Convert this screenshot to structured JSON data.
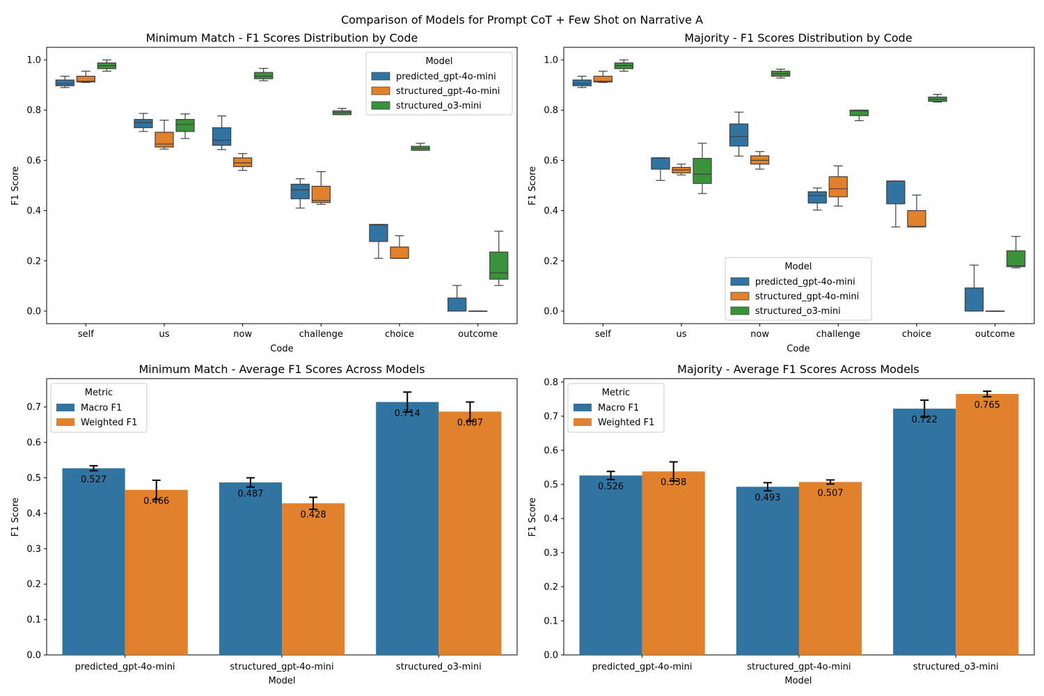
{
  "figure": {
    "suptitle": "Comparison of Models for Prompt CoT + Few Shot on Narrative A"
  },
  "colors": {
    "blue": "#3274a1",
    "orange": "#e1812c",
    "green": "#3a923a",
    "box_line": "#3f3f3f"
  },
  "chart_data": [
    {
      "type": "box",
      "panel": "top-left",
      "title": "Minimum Match - F1 Scores Distribution by Code",
      "xlabel": "Code",
      "ylabel": "F1 Score",
      "ylim": [
        -0.05,
        1.05
      ],
      "yticks": [
        "0.0",
        "0.2",
        "0.4",
        "0.6",
        "0.8",
        "1.0"
      ],
      "categories": [
        "self",
        "us",
        "now",
        "challenge",
        "choice",
        "outcome"
      ],
      "legend": {
        "title": "Model",
        "placement": "upper right",
        "entries": [
          "predicted_gpt-4o-mini",
          "structured_gpt-4o-mini",
          "structured_o3-mini"
        ]
      },
      "series": [
        {
          "name": "predicted_gpt-4o-mini",
          "boxes": [
            {
              "min": 0.89,
              "q1": 0.897,
              "median": 0.905,
              "q3": 0.92,
              "max": 0.935
            },
            {
              "min": 0.715,
              "q1": 0.73,
              "median": 0.75,
              "q3": 0.763,
              "max": 0.787
            },
            {
              "min": 0.643,
              "q1": 0.66,
              "median": 0.68,
              "q3": 0.73,
              "max": 0.777
            },
            {
              "min": 0.41,
              "q1": 0.447,
              "median": 0.483,
              "q3": 0.505,
              "max": 0.527
            },
            {
              "min": 0.21,
              "q1": 0.277,
              "median": 0.343,
              "q3": 0.345,
              "max": 0.345
            },
            {
              "min": 0.0,
              "q1": 0.0,
              "median": 0.0,
              "q3": 0.052,
              "max": 0.102
            }
          ]
        },
        {
          "name": "structured_gpt-4o-mini",
          "boxes": [
            {
              "min": 0.91,
              "q1": 0.912,
              "median": 0.915,
              "q3": 0.935,
              "max": 0.955
            },
            {
              "min": 0.645,
              "q1": 0.653,
              "median": 0.665,
              "q3": 0.712,
              "max": 0.76
            },
            {
              "min": 0.56,
              "q1": 0.575,
              "median": 0.59,
              "q3": 0.61,
              "max": 0.627
            },
            {
              "min": 0.425,
              "q1": 0.432,
              "median": 0.44,
              "q3": 0.497,
              "max": 0.555
            },
            {
              "min": 0.21,
              "q1": 0.21,
              "median": 0.21,
              "q3": 0.255,
              "max": 0.3
            },
            {
              "min": 0.0,
              "q1": 0.0,
              "median": 0.0,
              "q3": 0.0,
              "max": 0.0
            }
          ]
        },
        {
          "name": "structured_o3-mini",
          "boxes": [
            {
              "min": 0.955,
              "q1": 0.965,
              "median": 0.977,
              "q3": 0.988,
              "max": 1.0
            },
            {
              "min": 0.687,
              "q1": 0.715,
              "median": 0.743,
              "q3": 0.763,
              "max": 0.785
            },
            {
              "min": 0.917,
              "q1": 0.925,
              "median": 0.935,
              "q3": 0.95,
              "max": 0.966
            },
            {
              "min": 0.782,
              "q1": 0.782,
              "median": 0.79,
              "q3": 0.797,
              "max": 0.807
            },
            {
              "min": 0.64,
              "q1": 0.64,
              "median": 0.648,
              "q3": 0.656,
              "max": 0.668
            },
            {
              "min": 0.102,
              "q1": 0.127,
              "median": 0.152,
              "q3": 0.235,
              "max": 0.318
            }
          ]
        }
      ]
    },
    {
      "type": "box",
      "panel": "top-right",
      "title": "Majority - F1 Scores Distribution by Code",
      "xlabel": "Code",
      "ylabel": "F1 Score",
      "ylim": [
        -0.05,
        1.05
      ],
      "yticks": [
        "0.0",
        "0.2",
        "0.4",
        "0.6",
        "0.8",
        "1.0"
      ],
      "categories": [
        "self",
        "us",
        "now",
        "challenge",
        "choice",
        "outcome"
      ],
      "legend": {
        "title": "Model",
        "placement": "lower center",
        "entries": [
          "predicted_gpt-4o-mini",
          "structured_gpt-4o-mini",
          "structured_o3-mini"
        ]
      },
      "series": [
        {
          "name": "predicted_gpt-4o-mini",
          "boxes": [
            {
              "min": 0.89,
              "q1": 0.897,
              "median": 0.905,
              "q3": 0.92,
              "max": 0.935
            },
            {
              "min": 0.52,
              "q1": 0.565,
              "median": 0.61,
              "q3": 0.61,
              "max": 0.61
            },
            {
              "min": 0.617,
              "q1": 0.657,
              "median": 0.695,
              "q3": 0.745,
              "max": 0.792
            },
            {
              "min": 0.402,
              "q1": 0.43,
              "median": 0.46,
              "q3": 0.475,
              "max": 0.49
            },
            {
              "min": 0.335,
              "q1": 0.427,
              "median": 0.517,
              "q3": 0.518,
              "max": 0.518
            },
            {
              "min": 0.0,
              "q1": 0.0,
              "median": 0.0,
              "q3": 0.092,
              "max": 0.183
            }
          ]
        },
        {
          "name": "structured_gpt-4o-mini",
          "boxes": [
            {
              "min": 0.91,
              "q1": 0.912,
              "median": 0.915,
              "q3": 0.935,
              "max": 0.955
            },
            {
              "min": 0.542,
              "q1": 0.55,
              "median": 0.562,
              "q3": 0.572,
              "max": 0.585
            },
            {
              "min": 0.565,
              "q1": 0.585,
              "median": 0.6,
              "q3": 0.618,
              "max": 0.635
            },
            {
              "min": 0.418,
              "q1": 0.455,
              "median": 0.487,
              "q3": 0.535,
              "max": 0.578
            },
            {
              "min": 0.335,
              "q1": 0.335,
              "median": 0.337,
              "q3": 0.4,
              "max": 0.462
            },
            {
              "min": 0.0,
              "q1": 0.0,
              "median": 0.0,
              "q3": 0.0,
              "max": 0.0
            }
          ]
        },
        {
          "name": "structured_o3-mini",
          "boxes": [
            {
              "min": 0.955,
              "q1": 0.965,
              "median": 0.977,
              "q3": 0.988,
              "max": 1.0
            },
            {
              "min": 0.468,
              "q1": 0.508,
              "median": 0.545,
              "q3": 0.608,
              "max": 0.668
            },
            {
              "min": 0.928,
              "q1": 0.935,
              "median": 0.945,
              "q3": 0.955,
              "max": 0.963
            },
            {
              "min": 0.758,
              "q1": 0.778,
              "median": 0.797,
              "q3": 0.8,
              "max": 0.8
            },
            {
              "min": 0.832,
              "q1": 0.835,
              "median": 0.843,
              "q3": 0.852,
              "max": 0.863
            },
            {
              "min": 0.172,
              "q1": 0.177,
              "median": 0.18,
              "q3": 0.24,
              "max": 0.297
            }
          ]
        }
      ]
    },
    {
      "type": "bar",
      "panel": "bottom-left",
      "title": "Minimum Match - Average F1 Scores Across Models",
      "xlabel": "Model",
      "ylabel": "F1 Score",
      "ylim": [
        0,
        0.78
      ],
      "yticks": [
        "0.0",
        "0.1",
        "0.2",
        "0.3",
        "0.4",
        "0.5",
        "0.6",
        "0.7"
      ],
      "categories": [
        "predicted_gpt-4o-mini",
        "structured_gpt-4o-mini",
        "structured_o3-mini"
      ],
      "legend": {
        "title": "Metric",
        "placement": "upper left",
        "entries": [
          "Macro F1",
          "Weighted F1"
        ]
      },
      "series": [
        {
          "name": "Macro F1",
          "values": [
            0.527,
            0.487,
            0.714
          ],
          "labels": [
            "0.527",
            "0.487",
            "0.714"
          ],
          "err": [
            0.007,
            0.013,
            0.028
          ]
        },
        {
          "name": "Weighted F1",
          "values": [
            0.466,
            0.428,
            0.687
          ],
          "labels": [
            "0.466",
            "0.428",
            "0.687"
          ],
          "err": [
            0.027,
            0.017,
            0.027
          ]
        }
      ]
    },
    {
      "type": "bar",
      "panel": "bottom-right",
      "title": "Majority - Average F1 Scores Across Models",
      "xlabel": "Model",
      "ylabel": "F1 Score",
      "ylim": [
        0,
        0.81
      ],
      "yticks": [
        "0.0",
        "0.1",
        "0.2",
        "0.3",
        "0.4",
        "0.5",
        "0.6",
        "0.7",
        "0.8"
      ],
      "categories": [
        "predicted_gpt-4o-mini",
        "structured_gpt-4o-mini",
        "structured_o3-mini"
      ],
      "legend": {
        "title": "Metric",
        "placement": "upper left",
        "entries": [
          "Macro F1",
          "Weighted F1"
        ]
      },
      "series": [
        {
          "name": "Macro F1",
          "values": [
            0.526,
            0.493,
            0.722
          ],
          "labels": [
            "0.526",
            "0.493",
            "0.722"
          ],
          "err": [
            0.012,
            0.012,
            0.025
          ]
        },
        {
          "name": "Weighted F1",
          "values": [
            0.538,
            0.507,
            0.765
          ],
          "labels": [
            "0.538",
            "0.507",
            "0.765"
          ],
          "err": [
            0.028,
            0.006,
            0.008
          ]
        }
      ]
    }
  ]
}
